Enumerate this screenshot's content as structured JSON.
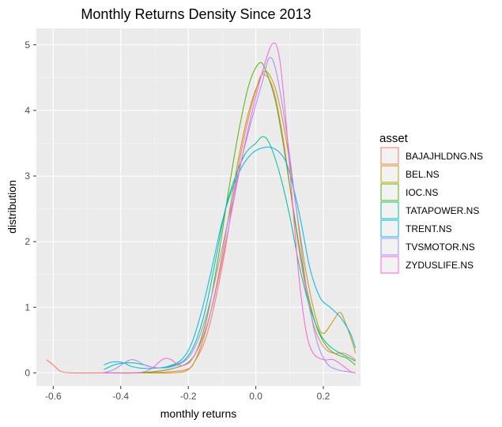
{
  "chart_data": {
    "type": "line",
    "title": "Monthly Returns Density Since 2013",
    "xlabel": "monthly returns",
    "ylabel": "distribution",
    "xlim": [
      -0.65,
      0.31
    ],
    "ylim": [
      -0.2,
      5.25
    ],
    "x_ticks": [
      -0.6,
      -0.4,
      -0.2,
      0.0,
      0.2
    ],
    "x_tick_labels": [
      "-0.6",
      "-0.4",
      "-0.2",
      "0.0",
      "0.2"
    ],
    "y_ticks": [
      0,
      1,
      2,
      3,
      4,
      5
    ],
    "y_tick_labels": [
      "0",
      "1",
      "2",
      "3",
      "4",
      "5"
    ],
    "grid": true,
    "legend_position": "right",
    "legend_title": "asset",
    "series": [
      {
        "name": "BAJAJHLDNG.NS",
        "color": "#F8766D",
        "points": [
          [
            -0.62,
            0.2
          ],
          [
            -0.6,
            0.12
          ],
          [
            -0.58,
            0.03
          ],
          [
            -0.55,
            0.0
          ],
          [
            -0.45,
            0.0
          ],
          [
            -0.35,
            0.0
          ],
          [
            -0.25,
            0.02
          ],
          [
            -0.2,
            0.06
          ],
          [
            -0.18,
            0.18
          ],
          [
            -0.15,
            0.5
          ],
          [
            -0.12,
            1.1
          ],
          [
            -0.09,
            1.9
          ],
          [
            -0.06,
            2.9
          ],
          [
            -0.03,
            3.7
          ],
          [
            0.0,
            4.3
          ],
          [
            0.02,
            4.55
          ],
          [
            0.05,
            4.35
          ],
          [
            0.08,
            3.6
          ],
          [
            0.11,
            2.5
          ],
          [
            0.14,
            1.5
          ],
          [
            0.17,
            0.75
          ],
          [
            0.2,
            0.4
          ],
          [
            0.23,
            0.3
          ],
          [
            0.26,
            0.3
          ],
          [
            0.29,
            0.22
          ],
          [
            0.295,
            0.18
          ]
        ]
      },
      {
        "name": "BEL.NS",
        "color": "#C49A00",
        "points": [
          [
            -0.45,
            0.0
          ],
          [
            -0.35,
            0.0
          ],
          [
            -0.25,
            0.0
          ],
          [
            -0.2,
            0.05
          ],
          [
            -0.17,
            0.3
          ],
          [
            -0.14,
            0.8
          ],
          [
            -0.11,
            1.5
          ],
          [
            -0.08,
            2.4
          ],
          [
            -0.05,
            3.3
          ],
          [
            -0.02,
            4.0
          ],
          [
            0.01,
            4.45
          ],
          [
            0.03,
            4.6
          ],
          [
            0.06,
            4.3
          ],
          [
            0.09,
            3.55
          ],
          [
            0.12,
            2.5
          ],
          [
            0.15,
            1.5
          ],
          [
            0.18,
            0.8
          ],
          [
            0.2,
            0.6
          ],
          [
            0.23,
            0.8
          ],
          [
            0.25,
            0.92
          ],
          [
            0.27,
            0.7
          ],
          [
            0.29,
            0.4
          ],
          [
            0.295,
            0.3
          ]
        ]
      },
      {
        "name": "IOC.NS",
        "color": "#53B400",
        "points": [
          [
            -0.45,
            0.0
          ],
          [
            -0.35,
            0.0
          ],
          [
            -0.3,
            0.02
          ],
          [
            -0.25,
            0.06
          ],
          [
            -0.2,
            0.16
          ],
          [
            -0.17,
            0.4
          ],
          [
            -0.14,
            0.95
          ],
          [
            -0.11,
            1.8
          ],
          [
            -0.08,
            2.8
          ],
          [
            -0.05,
            3.7
          ],
          [
            -0.02,
            4.4
          ],
          [
            0.01,
            4.72
          ],
          [
            0.03,
            4.6
          ],
          [
            0.06,
            4.1
          ],
          [
            0.09,
            3.2
          ],
          [
            0.12,
            2.2
          ],
          [
            0.15,
            1.3
          ],
          [
            0.18,
            0.7
          ],
          [
            0.21,
            0.4
          ],
          [
            0.24,
            0.28
          ],
          [
            0.27,
            0.22
          ],
          [
            0.295,
            0.12
          ]
        ]
      },
      {
        "name": "TATAPOWER.NS",
        "color": "#00C094",
        "points": [
          [
            -0.45,
            0.05
          ],
          [
            -0.42,
            0.12
          ],
          [
            -0.39,
            0.15
          ],
          [
            -0.36,
            0.15
          ],
          [
            -0.33,
            0.12
          ],
          [
            -0.3,
            0.08
          ],
          [
            -0.27,
            0.08
          ],
          [
            -0.24,
            0.12
          ],
          [
            -0.21,
            0.2
          ],
          [
            -0.18,
            0.45
          ],
          [
            -0.15,
            0.95
          ],
          [
            -0.12,
            1.7
          ],
          [
            -0.09,
            2.5
          ],
          [
            -0.06,
            3.0
          ],
          [
            -0.03,
            3.35
          ],
          [
            0.0,
            3.5
          ],
          [
            0.02,
            3.6
          ],
          [
            0.04,
            3.5
          ],
          [
            0.07,
            3.05
          ],
          [
            0.1,
            2.4
          ],
          [
            0.13,
            1.6
          ],
          [
            0.16,
            1.0
          ],
          [
            0.19,
            0.6
          ],
          [
            0.22,
            0.4
          ],
          [
            0.25,
            0.3
          ],
          [
            0.28,
            0.22
          ],
          [
            0.295,
            0.18
          ]
        ]
      },
      {
        "name": "TRENT.NS",
        "color": "#00B6EB",
        "points": [
          [
            -0.45,
            0.12
          ],
          [
            -0.43,
            0.16
          ],
          [
            -0.41,
            0.17
          ],
          [
            -0.39,
            0.15
          ],
          [
            -0.37,
            0.1
          ],
          [
            -0.34,
            0.07
          ],
          [
            -0.3,
            0.07
          ],
          [
            -0.26,
            0.1
          ],
          [
            -0.22,
            0.2
          ],
          [
            -0.19,
            0.45
          ],
          [
            -0.16,
            0.95
          ],
          [
            -0.13,
            1.6
          ],
          [
            -0.1,
            2.3
          ],
          [
            -0.07,
            2.8
          ],
          [
            -0.04,
            3.15
          ],
          [
            -0.01,
            3.35
          ],
          [
            0.02,
            3.43
          ],
          [
            0.05,
            3.43
          ],
          [
            0.08,
            3.3
          ],
          [
            0.1,
            3.05
          ],
          [
            0.13,
            2.4
          ],
          [
            0.16,
            1.6
          ],
          [
            0.19,
            1.15
          ],
          [
            0.22,
            1.0
          ],
          [
            0.25,
            0.85
          ],
          [
            0.28,
            0.6
          ],
          [
            0.295,
            0.38
          ]
        ]
      },
      {
        "name": "TVSMOTOR.NS",
        "color": "#A58AFF",
        "points": [
          [
            -0.45,
            0.0
          ],
          [
            -0.42,
            0.05
          ],
          [
            -0.39,
            0.15
          ],
          [
            -0.37,
            0.2
          ],
          [
            -0.35,
            0.18
          ],
          [
            -0.33,
            0.12
          ],
          [
            -0.3,
            0.08
          ],
          [
            -0.26,
            0.08
          ],
          [
            -0.22,
            0.15
          ],
          [
            -0.19,
            0.3
          ],
          [
            -0.16,
            0.65
          ],
          [
            -0.13,
            1.2
          ],
          [
            -0.1,
            1.9
          ],
          [
            -0.07,
            2.6
          ],
          [
            -0.04,
            3.3
          ],
          [
            -0.01,
            3.9
          ],
          [
            0.02,
            4.45
          ],
          [
            0.04,
            4.8
          ],
          [
            0.06,
            4.6
          ],
          [
            0.09,
            3.7
          ],
          [
            0.12,
            2.5
          ],
          [
            0.15,
            1.3
          ],
          [
            0.18,
            0.5
          ],
          [
            0.21,
            0.15
          ],
          [
            0.24,
            0.05
          ],
          [
            0.27,
            0.02
          ],
          [
            0.295,
            0.0
          ]
        ]
      },
      {
        "name": "ZYDUSLIFE.NS",
        "color": "#FB61D7",
        "points": [
          [
            -0.45,
            0.0
          ],
          [
            -0.35,
            0.0
          ],
          [
            -0.31,
            0.06
          ],
          [
            -0.29,
            0.15
          ],
          [
            -0.27,
            0.22
          ],
          [
            -0.25,
            0.2
          ],
          [
            -0.23,
            0.12
          ],
          [
            -0.21,
            0.12
          ],
          [
            -0.19,
            0.2
          ],
          [
            -0.16,
            0.5
          ],
          [
            -0.13,
            1.0
          ],
          [
            -0.1,
            1.7
          ],
          [
            -0.07,
            2.5
          ],
          [
            -0.04,
            3.3
          ],
          [
            -0.01,
            4.0
          ],
          [
            0.02,
            4.6
          ],
          [
            0.05,
            5.02
          ],
          [
            0.07,
            4.8
          ],
          [
            0.09,
            3.8
          ],
          [
            0.11,
            2.5
          ],
          [
            0.13,
            1.35
          ],
          [
            0.15,
            0.6
          ],
          [
            0.17,
            0.3
          ],
          [
            0.2,
            0.2
          ],
          [
            0.23,
            0.2
          ],
          [
            0.26,
            0.1
          ],
          [
            0.28,
            0.02
          ],
          [
            0.295,
            0.0
          ]
        ]
      }
    ]
  }
}
